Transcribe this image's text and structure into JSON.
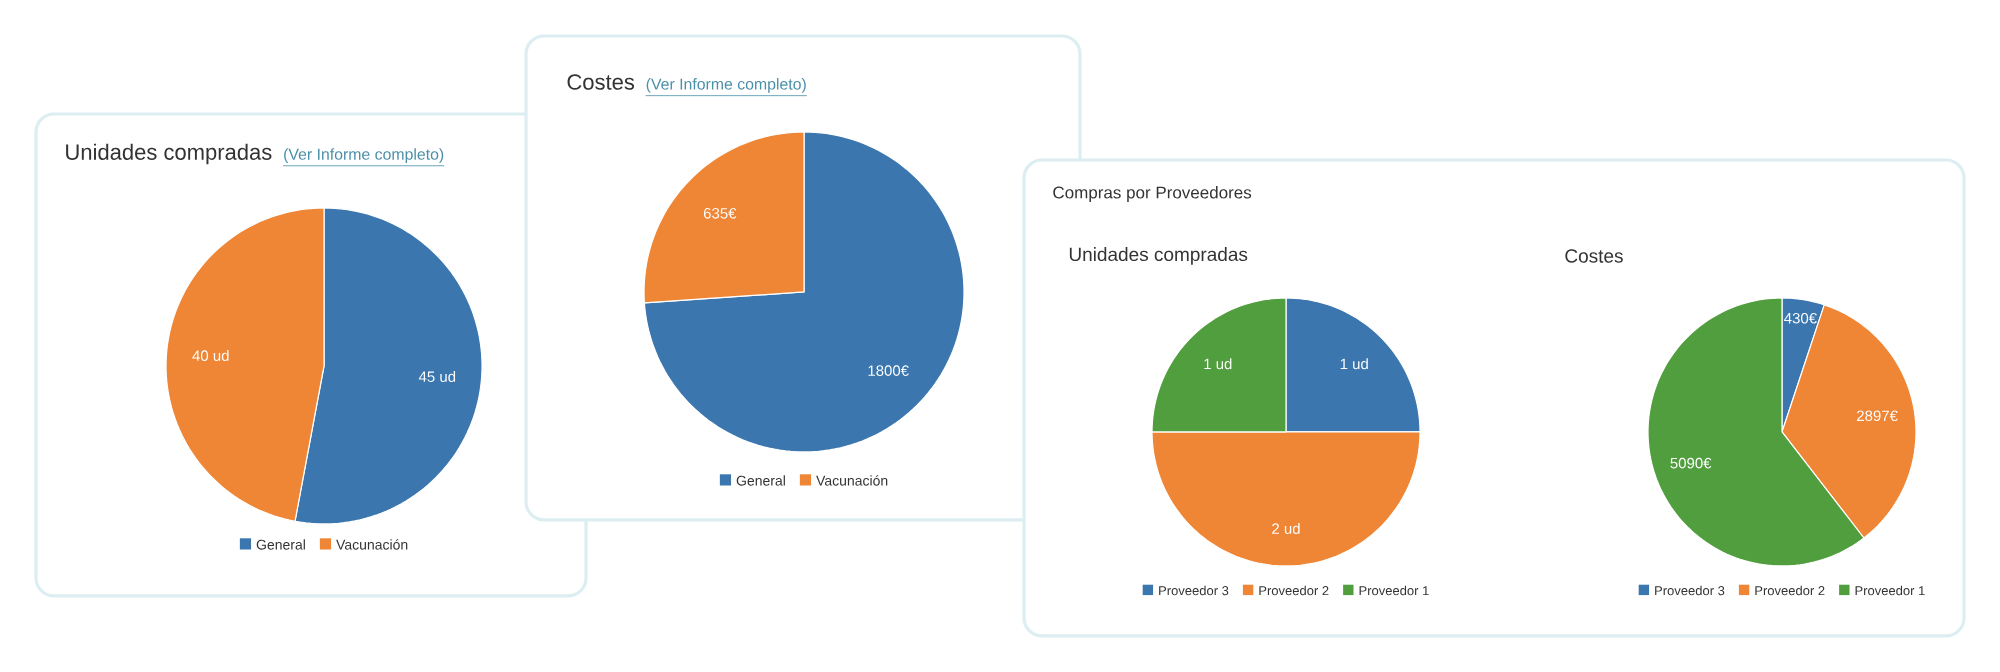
{
  "chart_data": [
    {
      "type": "pie",
      "title": "Unidades compradas",
      "subtitle": "(Ver Informe completo)",
      "categories": [
        "General",
        "Vacunación"
      ],
      "values": [
        45,
        40
      ],
      "colors": [
        "#3b76af",
        "#ef8636"
      ],
      "value_labels": [
        "45 ud",
        "40 ud"
      ],
      "legend": "bottom"
    },
    {
      "type": "pie",
      "title": "Costes",
      "subtitle": "(Ver Informe completo)",
      "categories": [
        "General",
        "Vacunación"
      ],
      "values": [
        1800,
        635
      ],
      "colors": [
        "#3b76af",
        "#ef8636"
      ],
      "value_labels": [
        "1800€",
        "635€"
      ],
      "legend": "bottom"
    },
    {
      "type": "pie",
      "title": "Compras por Proveedores",
      "subtitle": "Unidades compradas",
      "categories": [
        "Proveedor 3",
        "Proveedor 2",
        "Proveedor 1"
      ],
      "values": [
        1,
        2,
        1
      ],
      "colors": [
        "#3b76af",
        "#ef8636",
        "#519e3e"
      ],
      "value_labels": [
        "1 ud",
        "2 ud",
        "1 ud"
      ],
      "legend": "bottom"
    },
    {
      "type": "pie",
      "title": "Costes",
      "categories": [
        "Proveedor 3",
        "Proveedor 2",
        "Proveedor 1"
      ],
      "values": [
        430,
        2897,
        5090
      ],
      "colors": [
        "#3b76af",
        "#ef8636",
        "#519e3e"
      ],
      "value_labels": [
        "430€",
        "2897€",
        "5090€"
      ],
      "legend": "bottom"
    }
  ]
}
